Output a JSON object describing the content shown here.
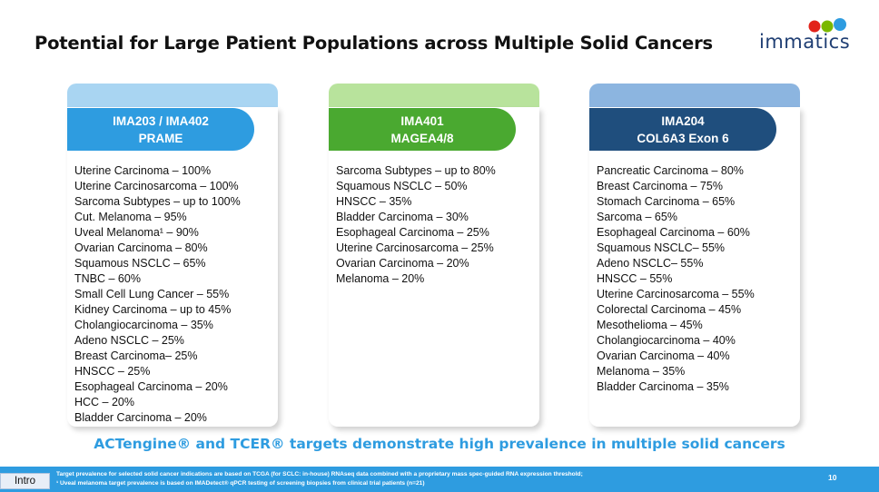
{
  "title": "Potential for Large Patient Populations across Multiple Solid Cancers",
  "logo": {
    "text": "immatics",
    "colors": [
      "#e2231a",
      "#7ab800",
      "#2e9ce0"
    ]
  },
  "cards": [
    {
      "header_line1": "IMA203 / IMA402",
      "header_line2": "PRAME",
      "accent": "#2e9ce0",
      "items": [
        "Uterine Carcinoma – 100%",
        "Uterine Carcinosarcoma – 100%",
        "Sarcoma Subtypes – up to 100%",
        "Cut. Melanoma – 95%",
        "Uveal Melanoma¹ – 90%",
        "Ovarian Carcinoma – 80%",
        "Squamous NSCLC – 65%",
        "TNBC – 60%",
        "Small Cell Lung Cancer – 55%",
        "Kidney Carcinoma –  up to 45%",
        "Cholangiocarcinoma – 35%",
        "Adeno NSCLC – 25%",
        "Breast Carcinoma– 25%",
        "HNSCC – 25%",
        "Esophageal Carcinoma – 20%",
        "HCC – 20%",
        "Bladder Carcinoma – 20%"
      ]
    },
    {
      "header_line1": "IMA401",
      "header_line2": "MAGEA4/8",
      "accent": "#4aa930",
      "items": [
        "Sarcoma Subtypes – up to 80%",
        "Squamous NSCLC – 50%",
        "HNSCC – 35%",
        "Bladder Carcinoma – 30%",
        "Esophageal Carcinoma – 25%",
        "Uterine Carcinosarcoma – 25%",
        "Ovarian Carcinoma – 20%",
        "Melanoma – 20%"
      ]
    },
    {
      "header_line1": "IMA204",
      "header_line2": "COL6A3 Exon 6",
      "accent": "#1f4e7d",
      "items": [
        "Pancreatic Carcinoma – 80%",
        "Breast Carcinoma – 75%",
        "Stomach Carcinoma – 65%",
        "Sarcoma – 65%",
        "Esophageal Carcinoma – 60%",
        "Squamous NSCLC– 55%",
        "Adeno NSCLC– 55%",
        "HNSCC – 55%",
        "Uterine Carcinosarcoma – 55%",
        "Colorectal Carcinoma – 45%",
        "Mesothelioma – 45%",
        "Cholangiocarcinoma – 40%",
        "Ovarian Carcinoma – 40%",
        "Melanoma – 35%",
        "Bladder Carcinoma – 35%"
      ]
    }
  ],
  "tagline": "ACTengine® and TCER® targets demonstrate high prevalence in multiple solid cancers",
  "footer": {
    "section": "Intro",
    "footnote1": "Target prevalence for selected solid cancer indications are based on TCGA (for SCLC: in-house) RNAseq data combined with a proprietary  mass spec-guided RNA expression threshold;",
    "footnote2": "¹ Uveal melanoma target prevalence is based on IMADetect® qPCR testing of screening  biopsies from clinical  trial patients (n=21)",
    "page_number": "10"
  }
}
